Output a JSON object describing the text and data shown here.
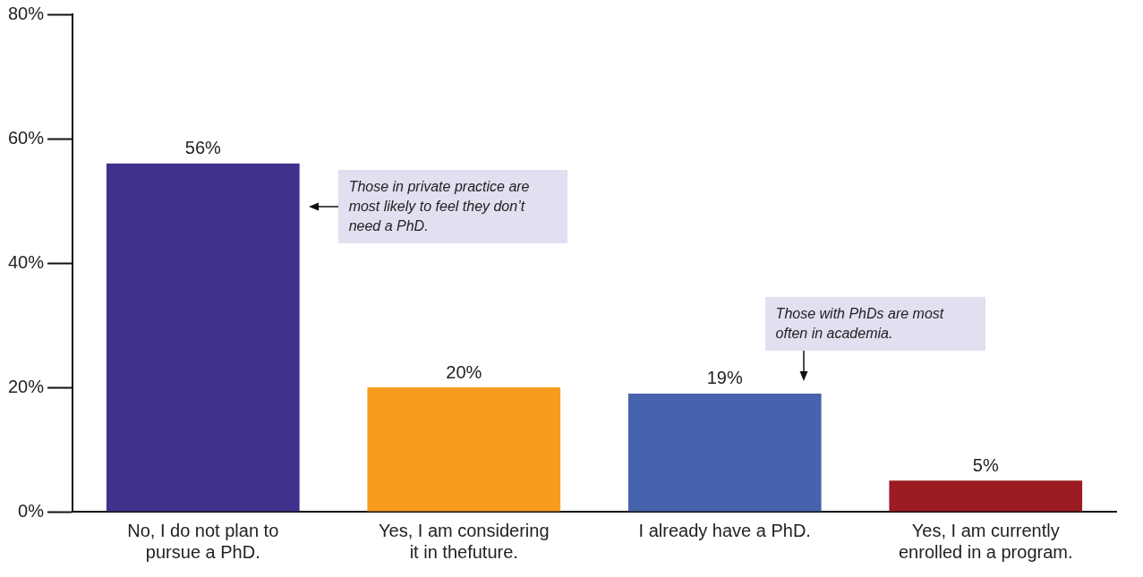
{
  "chart_data": {
    "type": "bar",
    "categories": [
      "No, I do not plan to pursue a PhD.",
      "Yes, I am considering it in thefuture.",
      "I already have a PhD.",
      "Yes, I am currently enrolled in a program."
    ],
    "values": [
      56,
      20,
      19,
      5
    ],
    "colors": [
      "#3f318c",
      "#f79c1f",
      "#4863ad",
      "#9b1c22"
    ],
    "value_labels": [
      "56%",
      "20%",
      "19%",
      "5%"
    ],
    "ylim": [
      0,
      80
    ],
    "yticks": [
      {
        "value": 0,
        "label": "0%"
      },
      {
        "value": 20,
        "label": "20%"
      },
      {
        "value": 40,
        "label": "40%"
      },
      {
        "value": 60,
        "label": "60%"
      },
      {
        "value": 80,
        "label": "80%"
      }
    ],
    "annotations": [
      "Those in private practice are most likely to feel they don’t need a PhD.",
      "Those with PhDs are most often in academia."
    ],
    "grid": false,
    "legend": false
  }
}
